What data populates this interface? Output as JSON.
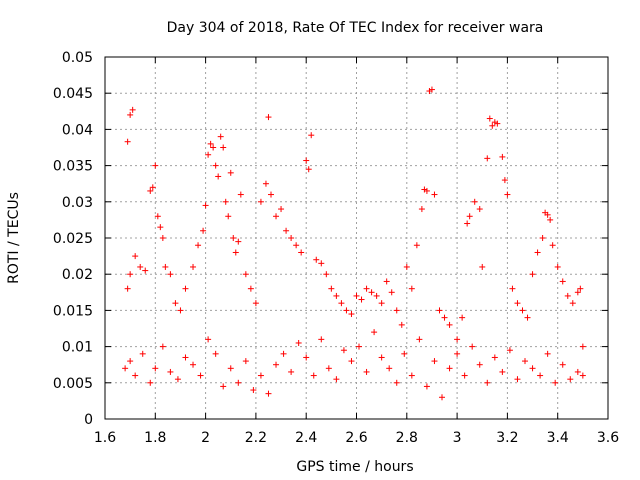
{
  "chart_data": {
    "type": "scatter",
    "title": "Day 304 of 2018, Rate Of TEC Index for receiver wara",
    "xlabel": "GPS time / hours",
    "ylabel": "ROTI / TECUs",
    "xlim": [
      1.6,
      3.6
    ],
    "ylim": [
      0,
      0.05
    ],
    "grid": true,
    "marker": "+",
    "marker_color": "#ff0000",
    "x_ticks": [
      "1.6",
      "1.8",
      "2",
      "2.2",
      "2.4",
      "2.6",
      "2.8",
      "3",
      "3.2",
      "3.4",
      "3.6"
    ],
    "y_ticks": [
      "0",
      "0.005",
      "0.01",
      "0.015",
      "0.02",
      "0.025",
      "0.03",
      "0.035",
      "0.04",
      "0.045",
      "0.05"
    ],
    "series": [
      {
        "name": "ROTI",
        "points": [
          [
            1.68,
            0.007
          ],
          [
            1.69,
            0.0383
          ],
          [
            1.7,
            0.042
          ],
          [
            1.71,
            0.0427
          ],
          [
            1.69,
            0.018
          ],
          [
            1.7,
            0.02
          ],
          [
            1.72,
            0.0225
          ],
          [
            1.74,
            0.021
          ],
          [
            1.76,
            0.0205
          ],
          [
            1.78,
            0.0315
          ],
          [
            1.79,
            0.032
          ],
          [
            1.8,
            0.035
          ],
          [
            1.81,
            0.028
          ],
          [
            1.82,
            0.0265
          ],
          [
            1.83,
            0.025
          ],
          [
            1.84,
            0.021
          ],
          [
            1.86,
            0.02
          ],
          [
            1.88,
            0.016
          ],
          [
            1.9,
            0.015
          ],
          [
            1.92,
            0.018
          ],
          [
            1.95,
            0.021
          ],
          [
            1.97,
            0.024
          ],
          [
            1.99,
            0.026
          ],
          [
            2.0,
            0.0295
          ],
          [
            2.01,
            0.0365
          ],
          [
            2.02,
            0.038
          ],
          [
            2.03,
            0.0375
          ],
          [
            2.04,
            0.035
          ],
          [
            2.05,
            0.0335
          ],
          [
            2.06,
            0.039
          ],
          [
            2.07,
            0.0375
          ],
          [
            2.08,
            0.03
          ],
          [
            2.09,
            0.028
          ],
          [
            2.1,
            0.034
          ],
          [
            2.11,
            0.025
          ],
          [
            2.12,
            0.023
          ],
          [
            2.13,
            0.0245
          ],
          [
            2.14,
            0.031
          ],
          [
            2.16,
            0.02
          ],
          [
            2.18,
            0.018
          ],
          [
            2.2,
            0.016
          ],
          [
            2.22,
            0.03
          ],
          [
            2.24,
            0.0325
          ],
          [
            2.25,
            0.0417
          ],
          [
            2.26,
            0.031
          ],
          [
            2.28,
            0.028
          ],
          [
            2.3,
            0.029
          ],
          [
            2.32,
            0.026
          ],
          [
            2.34,
            0.025
          ],
          [
            2.36,
            0.024
          ],
          [
            2.38,
            0.023
          ],
          [
            2.4,
            0.0357
          ],
          [
            2.41,
            0.0345
          ],
          [
            2.42,
            0.0392
          ],
          [
            2.44,
            0.022
          ],
          [
            2.46,
            0.0215
          ],
          [
            2.48,
            0.02
          ],
          [
            2.5,
            0.018
          ],
          [
            2.52,
            0.017
          ],
          [
            2.54,
            0.016
          ],
          [
            2.56,
            0.015
          ],
          [
            2.58,
            0.0145
          ],
          [
            2.6,
            0.017
          ],
          [
            2.62,
            0.0165
          ],
          [
            2.64,
            0.018
          ],
          [
            2.66,
            0.0175
          ],
          [
            2.68,
            0.017
          ],
          [
            2.7,
            0.016
          ],
          [
            2.72,
            0.019
          ],
          [
            2.74,
            0.0175
          ],
          [
            2.76,
            0.015
          ],
          [
            2.78,
            0.013
          ],
          [
            2.8,
            0.021
          ],
          [
            2.82,
            0.018
          ],
          [
            2.84,
            0.024
          ],
          [
            2.86,
            0.029
          ],
          [
            2.87,
            0.0317
          ],
          [
            2.88,
            0.0315
          ],
          [
            2.89,
            0.0453
          ],
          [
            2.9,
            0.0455
          ],
          [
            2.91,
            0.031
          ],
          [
            2.93,
            0.015
          ],
          [
            2.95,
            0.014
          ],
          [
            2.97,
            0.013
          ],
          [
            3.0,
            0.011
          ],
          [
            3.02,
            0.014
          ],
          [
            3.04,
            0.027
          ],
          [
            3.05,
            0.028
          ],
          [
            3.07,
            0.03
          ],
          [
            3.09,
            0.029
          ],
          [
            3.1,
            0.021
          ],
          [
            3.12,
            0.036
          ],
          [
            3.13,
            0.0415
          ],
          [
            3.14,
            0.0405
          ],
          [
            3.15,
            0.041
          ],
          [
            3.16,
            0.0408
          ],
          [
            3.18,
            0.0362
          ],
          [
            3.19,
            0.033
          ],
          [
            3.2,
            0.031
          ],
          [
            3.22,
            0.018
          ],
          [
            3.24,
            0.016
          ],
          [
            3.26,
            0.015
          ],
          [
            3.28,
            0.014
          ],
          [
            3.3,
            0.02
          ],
          [
            3.32,
            0.023
          ],
          [
            3.34,
            0.025
          ],
          [
            3.35,
            0.0285
          ],
          [
            3.36,
            0.0282
          ],
          [
            3.37,
            0.0275
          ],
          [
            3.38,
            0.024
          ],
          [
            3.4,
            0.021
          ],
          [
            3.42,
            0.019
          ],
          [
            3.44,
            0.017
          ],
          [
            3.46,
            0.016
          ],
          [
            3.48,
            0.0175
          ],
          [
            3.49,
            0.018
          ],
          [
            3.5,
            0.01
          ],
          [
            1.7,
            0.008
          ],
          [
            1.72,
            0.006
          ],
          [
            1.75,
            0.009
          ],
          [
            1.78,
            0.005
          ],
          [
            1.8,
            0.007
          ],
          [
            1.83,
            0.01
          ],
          [
            1.86,
            0.0065
          ],
          [
            1.89,
            0.0055
          ],
          [
            1.92,
            0.0085
          ],
          [
            1.95,
            0.0075
          ],
          [
            1.98,
            0.006
          ],
          [
            2.01,
            0.011
          ],
          [
            2.04,
            0.009
          ],
          [
            2.07,
            0.0045
          ],
          [
            2.1,
            0.007
          ],
          [
            2.13,
            0.005
          ],
          [
            2.16,
            0.008
          ],
          [
            2.19,
            0.004
          ],
          [
            2.22,
            0.006
          ],
          [
            2.25,
            0.0035
          ],
          [
            2.28,
            0.0075
          ],
          [
            2.31,
            0.009
          ],
          [
            2.34,
            0.0065
          ],
          [
            2.37,
            0.0105
          ],
          [
            2.4,
            0.0085
          ],
          [
            2.43,
            0.006
          ],
          [
            2.46,
            0.011
          ],
          [
            2.49,
            0.007
          ],
          [
            2.52,
            0.0055
          ],
          [
            2.55,
            0.0095
          ],
          [
            2.58,
            0.008
          ],
          [
            2.61,
            0.01
          ],
          [
            2.64,
            0.0065
          ],
          [
            2.67,
            0.012
          ],
          [
            2.7,
            0.0085
          ],
          [
            2.73,
            0.007
          ],
          [
            2.76,
            0.005
          ],
          [
            2.79,
            0.009
          ],
          [
            2.82,
            0.006
          ],
          [
            2.85,
            0.011
          ],
          [
            2.88,
            0.0045
          ],
          [
            2.91,
            0.008
          ],
          [
            2.94,
            0.003
          ],
          [
            2.97,
            0.007
          ],
          [
            3.0,
            0.009
          ],
          [
            3.03,
            0.006
          ],
          [
            3.06,
            0.01
          ],
          [
            3.09,
            0.0075
          ],
          [
            3.12,
            0.005
          ],
          [
            3.15,
            0.0085
          ],
          [
            3.18,
            0.0065
          ],
          [
            3.21,
            0.0095
          ],
          [
            3.24,
            0.0055
          ],
          [
            3.27,
            0.008
          ],
          [
            3.3,
            0.007
          ],
          [
            3.33,
            0.006
          ],
          [
            3.36,
            0.009
          ],
          [
            3.39,
            0.005
          ],
          [
            3.42,
            0.0075
          ],
          [
            3.45,
            0.0055
          ],
          [
            3.48,
            0.0065
          ],
          [
            3.5,
            0.006
          ]
        ]
      }
    ]
  }
}
